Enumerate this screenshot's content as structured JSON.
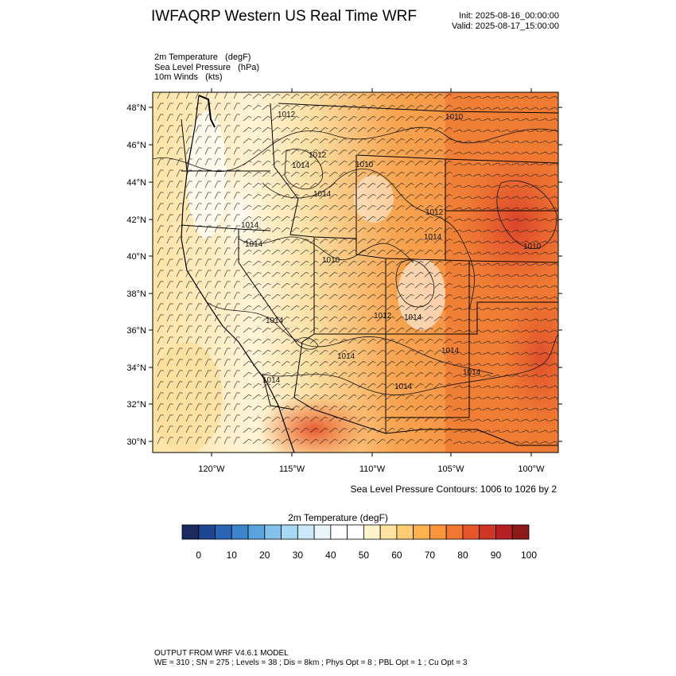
{
  "header": {
    "title": "IWFAQRP Western US Real Time WRF",
    "init": "Init: 2025-08-16_00:00:00",
    "valid": "Valid: 2025-08-17_15:00:00"
  },
  "fields": [
    "2m Temperature   (degF)",
    "Sea Level Pressure   (hPa)",
    "10m Winds   (kts)"
  ],
  "map": {
    "lat_labels": [
      "48°N",
      "46°N",
      "44°N",
      "42°N",
      "40°N",
      "38°N",
      "36°N",
      "34°N",
      "32°N",
      "30°N"
    ],
    "lon_labels": [
      "120°W",
      "115°W",
      "110°W",
      "105°W",
      "100°W"
    ],
    "pressure_labels": [
      "1012",
      "1010",
      "1012",
      "1010",
      "1014",
      "1014",
      "1014",
      "1014",
      "1012",
      "1014",
      "1010",
      "1010",
      "1014",
      "1012",
      "1014",
      "1014",
      "1014",
      "1014",
      "1014",
      "1014"
    ],
    "contour_note": "Sea Level Pressure Contours: 1006 to 1026 by 2"
  },
  "colorbar": {
    "title": "2m Temperature  (degF)",
    "colors": [
      "#1a2a5e",
      "#1d4691",
      "#2a64b5",
      "#3d84cb",
      "#5aa4dd",
      "#83c1ea",
      "#a8d9f4",
      "#cbe9f8",
      "#eaf5fb",
      "#ffffff",
      "#ffffff",
      "#fff3cc",
      "#ffe3a0",
      "#fdcc73",
      "#fdb24e",
      "#f9963b",
      "#f27732",
      "#e5562b",
      "#cf3626",
      "#b52023",
      "#8c1a1a"
    ],
    "tick_labels": [
      "0",
      "10",
      "20",
      "30",
      "40",
      "50",
      "60",
      "70",
      "80",
      "90",
      "100"
    ]
  },
  "footer": {
    "line1": "OUTPUT FROM WRF V4.6.1 MODEL",
    "line2": "WE = 310 ; SN = 275 ; Levels = 38 ; Dis = 8km ; Phys Opt = 8 ; PBL Opt = 1 ; Cu Opt = 3"
  }
}
